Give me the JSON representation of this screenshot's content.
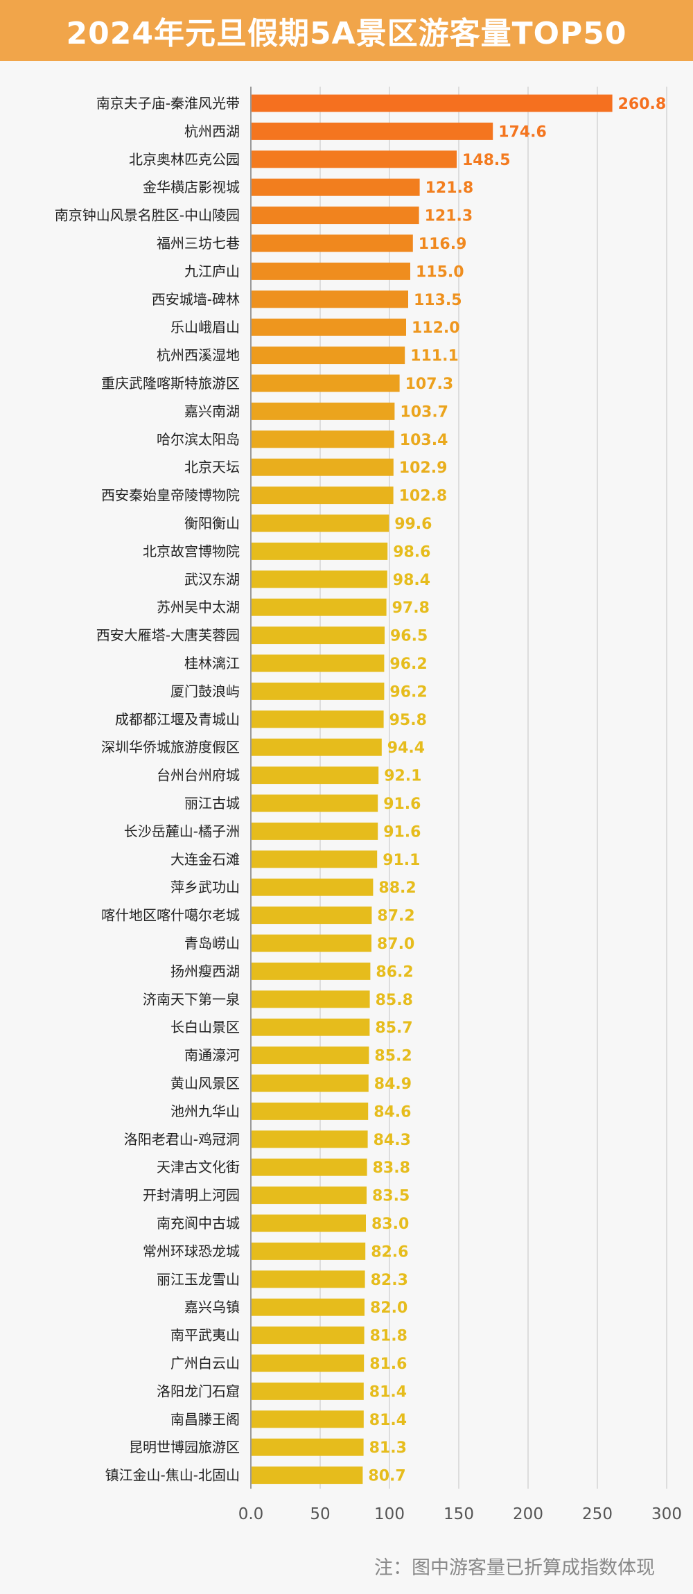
{
  "header": {
    "title": "2024年元旦假期5A景区游客量TOP50"
  },
  "footnote": "注：图中游客量已折算成指数体现",
  "chart_data": {
    "type": "bar",
    "orientation": "horizontal",
    "title": "2024年元旦假期5A景区游客量TOP50",
    "xlim": [
      0,
      300
    ],
    "xticks": [
      "0.0",
      "50",
      "100",
      "150",
      "200",
      "250",
      "300"
    ],
    "xtick_values": [
      0,
      50,
      100,
      150,
      200,
      250,
      300
    ],
    "grid": true,
    "colors": {
      "high": "#f5701f",
      "low": "#e6bc1c"
    },
    "categories": [
      "南京夫子庙-秦淮风光带",
      "杭州西湖",
      "北京奥林匹克公园",
      "金华横店影视城",
      "南京钟山风景名胜区-中山陵园",
      "福州三坊七巷",
      "九江庐山",
      "西安城墙-碑林",
      "乐山峨眉山",
      "杭州西溪湿地",
      "重庆武隆喀斯特旅游区",
      "嘉兴南湖",
      "哈尔滨太阳岛",
      "北京天坛",
      "西安秦始皇帝陵博物院",
      "衡阳衡山",
      "北京故宫博物院",
      "武汉东湖",
      "苏州吴中太湖",
      "西安大雁塔-大唐芙蓉园",
      "桂林漓江",
      "厦门鼓浪屿",
      "成都都江堰及青城山",
      "深圳华侨城旅游度假区",
      "台州台州府城",
      "丽江古城",
      "长沙岳麓山-橘子洲",
      "大连金石滩",
      "萍乡武功山",
      "喀什地区喀什噶尔老城",
      "青岛崂山",
      "扬州瘦西湖",
      "济南天下第一泉",
      "长白山景区",
      "南通濠河",
      "黄山风景区",
      "池州九华山",
      "洛阳老君山-鸡冠洞",
      "天津古文化街",
      "开封清明上河园",
      "南充阆中古城",
      "常州环球恐龙城",
      "丽江玉龙雪山",
      "嘉兴乌镇",
      "南平武夷山",
      "广州白云山",
      "洛阳龙门石窟",
      "南昌滕王阁",
      "昆明世博园旅游区",
      "镇江金山-焦山-北固山"
    ],
    "values": [
      260.8,
      174.6,
      148.5,
      121.8,
      121.3,
      116.9,
      115.0,
      113.5,
      112.0,
      111.1,
      107.3,
      103.7,
      103.4,
      102.9,
      102.8,
      99.6,
      98.6,
      98.4,
      97.8,
      96.5,
      96.2,
      96.2,
      95.8,
      94.4,
      92.1,
      91.6,
      91.6,
      91.1,
      88.2,
      87.2,
      87.0,
      86.2,
      85.8,
      85.7,
      85.2,
      84.9,
      84.6,
      84.3,
      83.8,
      83.5,
      83.0,
      82.6,
      82.3,
      82.0,
      81.8,
      81.6,
      81.4,
      81.4,
      81.3,
      80.7
    ],
    "value_labels": [
      "260.8",
      "174.6",
      "148.5",
      "121.8",
      "121.3",
      "116.9",
      "115.0",
      "113.5",
      "112.0",
      "111.1",
      "107.3",
      "103.7",
      "103.4",
      "102.9",
      "102.8",
      "99.6",
      "98.6",
      "98.4",
      "97.8",
      "96.5",
      "96.2",
      "96.2",
      "95.8",
      "94.4",
      "92.1",
      "91.6",
      "91.6",
      "91.1",
      "88.2",
      "87.2",
      "87.0",
      "86.2",
      "85.8",
      "85.7",
      "85.2",
      "84.9",
      "84.6",
      "84.3",
      "83.8",
      "83.5",
      "83.0",
      "82.6",
      "82.3",
      "82.0",
      "81.8",
      "81.6",
      "81.4",
      "81.4",
      "81.3",
      "80.7"
    ]
  }
}
